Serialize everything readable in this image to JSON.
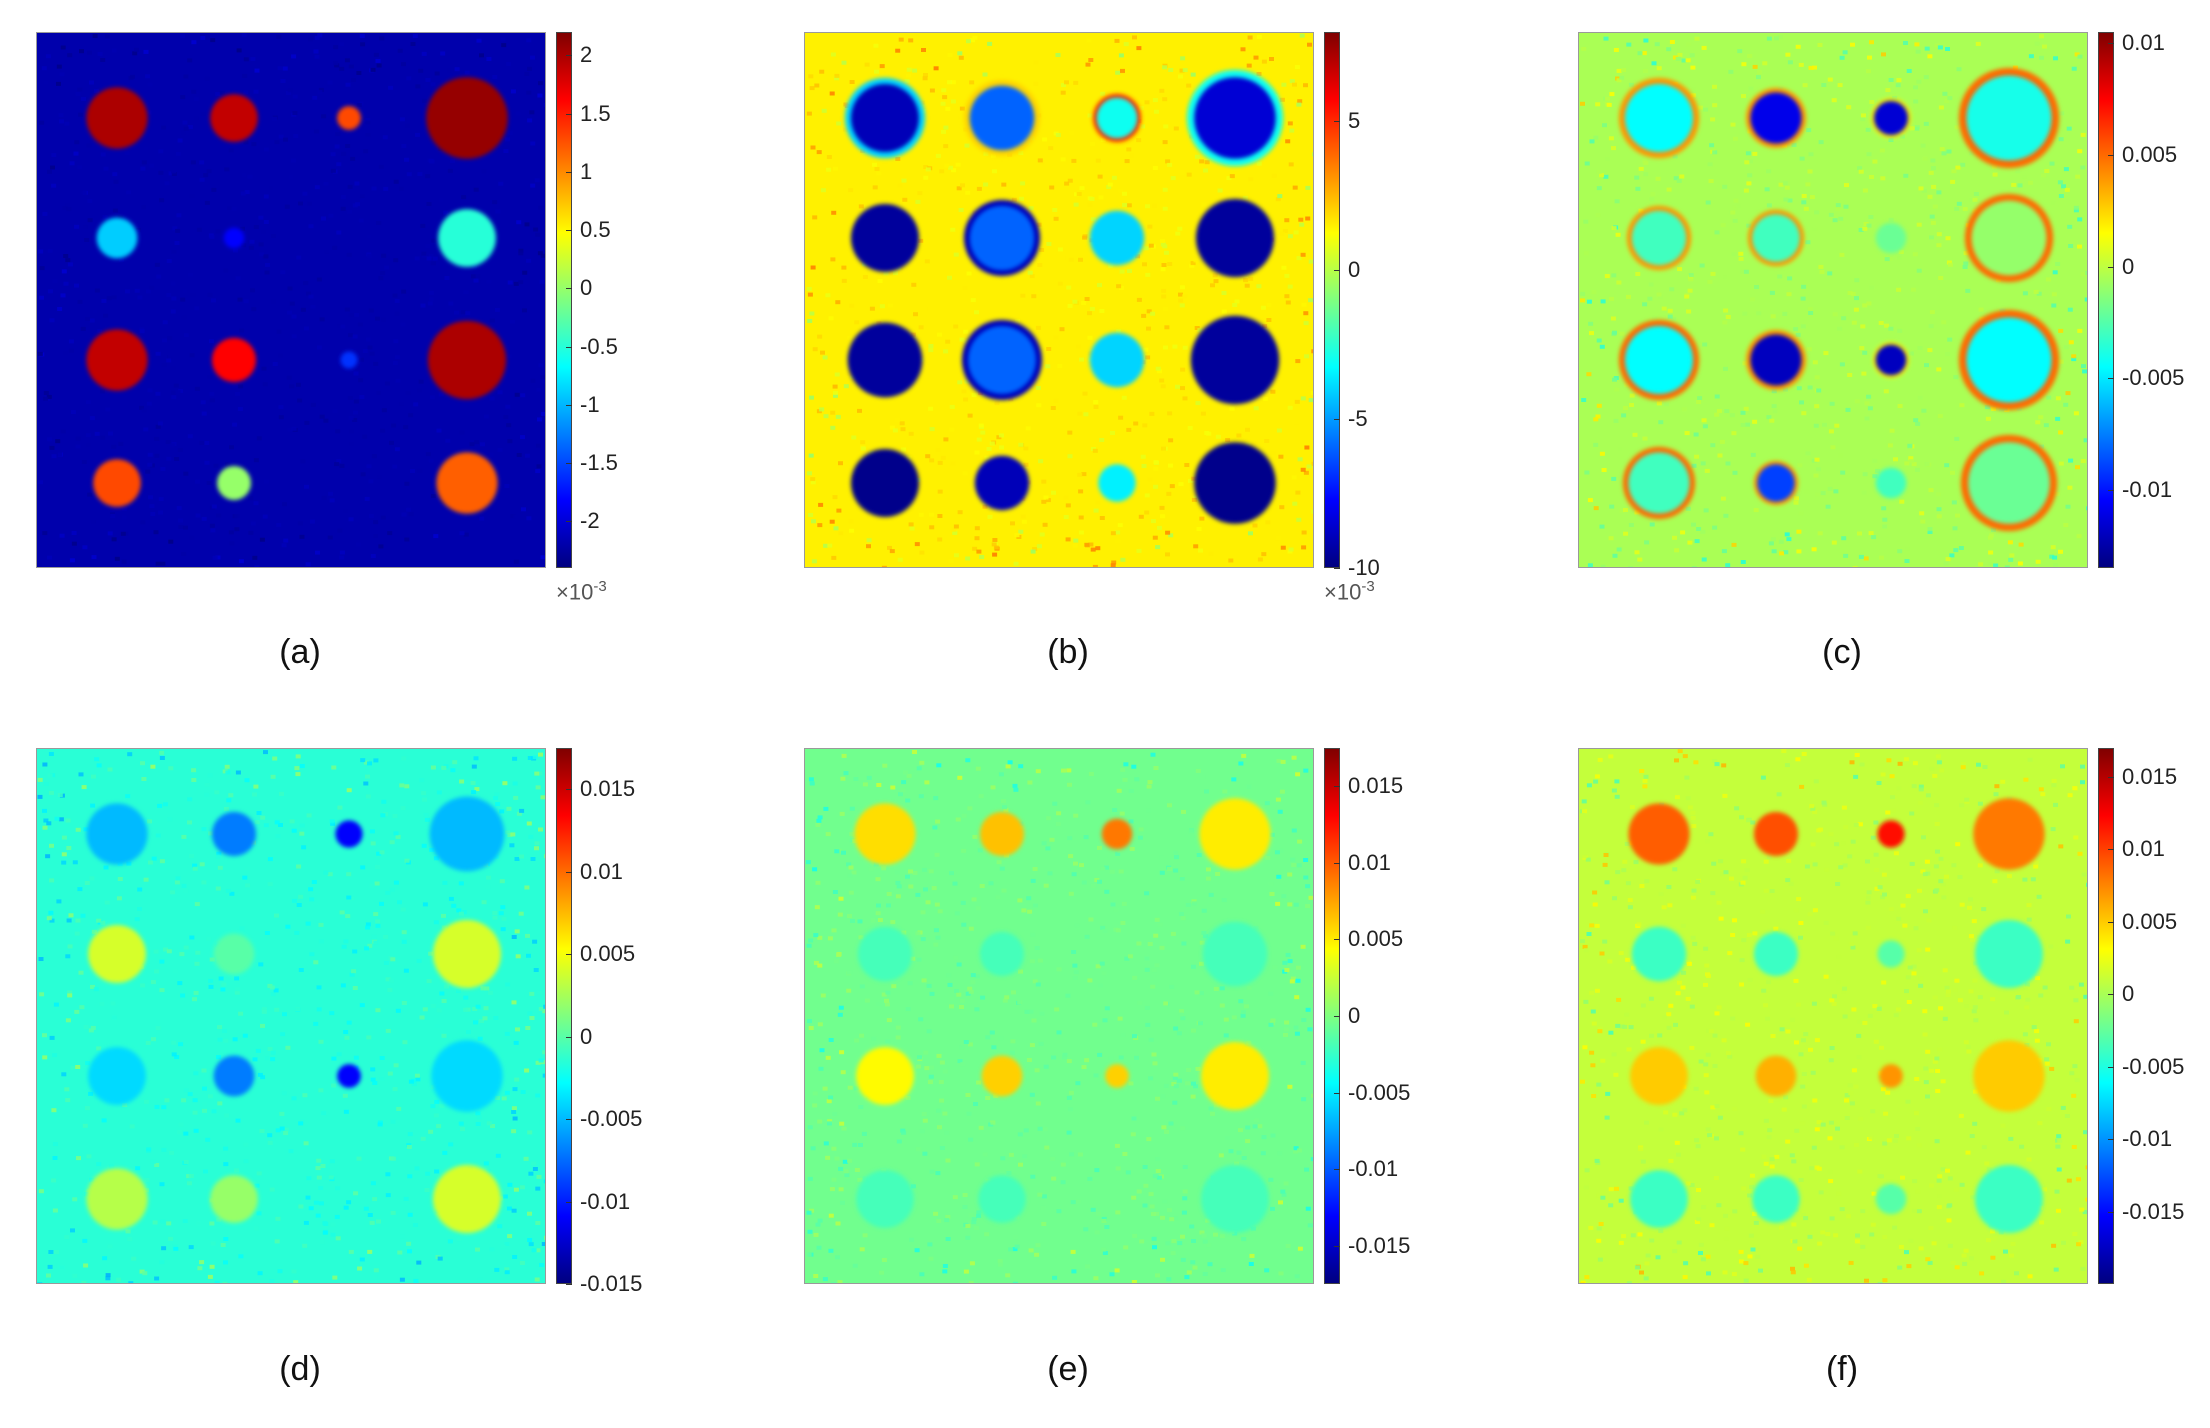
{
  "chart_data": [
    {
      "type": "heatmap",
      "panel_label": "(a)",
      "colorbar": {
        "colormap": "jet",
        "range": [
          -2.4,
          2.2
        ],
        "ticks": [
          2,
          1.5,
          1,
          0.5,
          0,
          -0.5,
          -1,
          -1.5,
          -2
        ],
        "tick_labels": [
          "2",
          "1.5",
          "1",
          "0.5",
          "0",
          "-0.5",
          "-1",
          "-1.5",
          "-2"
        ],
        "exponent_label": "×10",
        "exponent_power": "-3"
      },
      "background": {
        "value": -2.2,
        "noise": 0.08
      },
      "spots": [
        {
          "row": 1,
          "col": 1,
          "value": 2.0,
          "radius": 0.9
        },
        {
          "row": 1,
          "col": 2,
          "value": 1.9,
          "radius": 0.7
        },
        {
          "row": 1,
          "col": 3,
          "value": 1.3,
          "radius": 0.35
        },
        {
          "row": 1,
          "col": 4,
          "value": 2.1,
          "radius": 1.2
        },
        {
          "row": 2,
          "col": 1,
          "value": -0.9,
          "radius": 0.6
        },
        {
          "row": 2,
          "col": 2,
          "value": -1.8,
          "radius": 0.3
        },
        {
          "row": 2,
          "col": 4,
          "value": -0.5,
          "radius": 0.85
        },
        {
          "row": 3,
          "col": 1,
          "value": 1.9,
          "radius": 0.9
        },
        {
          "row": 3,
          "col": 2,
          "value": 1.6,
          "radius": 0.65
        },
        {
          "row": 3,
          "col": 3,
          "value": -1.6,
          "radius": 0.25
        },
        {
          "row": 3,
          "col": 4,
          "value": 2.0,
          "radius": 1.15
        },
        {
          "row": 4,
          "col": 1,
          "value": 1.3,
          "radius": 0.7
        },
        {
          "row": 4,
          "col": 2,
          "value": 0.0,
          "radius": 0.5
        },
        {
          "row": 4,
          "col": 4,
          "value": 1.2,
          "radius": 0.9
        }
      ]
    },
    {
      "type": "heatmap",
      "panel_label": "(b)",
      "colorbar": {
        "colormap": "jet",
        "range": [
          -10,
          8
        ],
        "ticks": [
          5,
          0,
          -5,
          -10
        ],
        "tick_labels": [
          "5",
          "0",
          "-5",
          "-10"
        ],
        "exponent_label": "×10",
        "exponent_power": "-3"
      },
      "background": {
        "value": 1.5,
        "noise": 1.0
      },
      "spots": [
        {
          "row": 1,
          "col": 1,
          "value": -9.0,
          "radius": 1.0,
          "ring": true,
          "ring_value": -4
        },
        {
          "row": 1,
          "col": 2,
          "value": -6.0,
          "radius": 0.95,
          "ring": true,
          "ring_value": 2
        },
        {
          "row": 1,
          "col": 3,
          "value": -3.0,
          "radius": 0.6,
          "ring": true,
          "ring_value": 5
        },
        {
          "row": 1,
          "col": 4,
          "value": -8.5,
          "radius": 1.2,
          "ring": true,
          "ring_value": -3
        },
        {
          "row": 2,
          "col": 1,
          "value": -9.5,
          "radius": 1.0
        },
        {
          "row": 2,
          "col": 2,
          "value": -6.0,
          "radius": 0.95,
          "ring": true,
          "ring_value": -9
        },
        {
          "row": 2,
          "col": 3,
          "value": -4.0,
          "radius": 0.8
        },
        {
          "row": 2,
          "col": 4,
          "value": -9.5,
          "radius": 1.15
        },
        {
          "row": 3,
          "col": 1,
          "value": -9.5,
          "radius": 1.1
        },
        {
          "row": 3,
          "col": 2,
          "value": -6.0,
          "radius": 1.0,
          "ring": true,
          "ring_value": -9
        },
        {
          "row": 3,
          "col": 3,
          "value": -4.0,
          "radius": 0.8
        },
        {
          "row": 3,
          "col": 4,
          "value": -9.5,
          "radius": 1.3
        },
        {
          "row": 4,
          "col": 1,
          "value": -9.8,
          "radius": 1.0
        },
        {
          "row": 4,
          "col": 2,
          "value": -9.0,
          "radius": 0.8
        },
        {
          "row": 4,
          "col": 3,
          "value": -3.5,
          "radius": 0.55
        },
        {
          "row": 4,
          "col": 4,
          "value": -9.8,
          "radius": 1.2
        }
      ]
    },
    {
      "type": "heatmap",
      "panel_label": "(c)",
      "colorbar": {
        "colormap": "jet",
        "range": [
          -0.0135,
          0.0105
        ],
        "ticks": [
          0.01,
          0.005,
          0,
          -0.005,
          -0.01
        ],
        "tick_labels": [
          "0.01",
          "0.005",
          "0",
          "-0.005",
          "-0.01"
        ]
      },
      "background": {
        "value": -0.0005,
        "noise": 0.0015
      },
      "spots": [
        {
          "row": 1,
          "col": 1,
          "value": -0.0045,
          "radius": 1.0,
          "ring": true,
          "ring_value": 0.004
        },
        {
          "row": 1,
          "col": 2,
          "value": -0.011,
          "radius": 0.75,
          "ring": true,
          "ring_value": 0.004
        },
        {
          "row": 1,
          "col": 3,
          "value": -0.0115,
          "radius": 0.5,
          "ring": true,
          "ring_value": 0.002
        },
        {
          "row": 1,
          "col": 4,
          "value": -0.004,
          "radius": 1.25,
          "ring": true,
          "ring_value": 0.005
        },
        {
          "row": 2,
          "col": 1,
          "value": -0.003,
          "radius": 0.8,
          "ring": true,
          "ring_value": 0.004
        },
        {
          "row": 2,
          "col": 2,
          "value": -0.003,
          "radius": 0.7,
          "ring": true,
          "ring_value": 0.004
        },
        {
          "row": 2,
          "col": 3,
          "value": -0.002,
          "radius": 0.45
        },
        {
          "row": 2,
          "col": 4,
          "value": -0.001,
          "radius": 1.1,
          "ring": true,
          "ring_value": 0.005
        },
        {
          "row": 3,
          "col": 1,
          "value": -0.0045,
          "radius": 1.0,
          "ring": true,
          "ring_value": 0.005
        },
        {
          "row": 3,
          "col": 2,
          "value": -0.012,
          "radius": 0.75,
          "ring": true,
          "ring_value": 0.004
        },
        {
          "row": 3,
          "col": 3,
          "value": -0.012,
          "radius": 0.45,
          "ring": true,
          "ring_value": 0.002
        },
        {
          "row": 3,
          "col": 4,
          "value": -0.0045,
          "radius": 1.25,
          "ring": true,
          "ring_value": 0.005
        },
        {
          "row": 4,
          "col": 1,
          "value": -0.003,
          "radius": 0.9,
          "ring": true,
          "ring_value": 0.005
        },
        {
          "row": 4,
          "col": 2,
          "value": -0.009,
          "radius": 0.55,
          "ring": true,
          "ring_value": 0.004
        },
        {
          "row": 4,
          "col": 3,
          "value": -0.003,
          "radius": 0.45
        },
        {
          "row": 4,
          "col": 4,
          "value": -0.002,
          "radius": 1.2,
          "ring": true,
          "ring_value": 0.005
        }
      ]
    },
    {
      "type": "heatmap",
      "panel_label": "(d)",
      "colorbar": {
        "colormap": "jet",
        "range": [
          -0.015,
          0.0175
        ],
        "ticks": [
          0.015,
          0.01,
          0.005,
          0,
          -0.005,
          -0.01,
          -0.015
        ],
        "tick_labels": [
          "0.015",
          "0.01",
          "0.005",
          "0",
          "-0.005",
          "-0.01",
          "-0.015"
        ]
      },
      "background": {
        "value": -0.0015,
        "noise": 0.0018
      },
      "spots": [
        {
          "row": 1,
          "col": 1,
          "value": -0.005,
          "radius": 0.9
        },
        {
          "row": 1,
          "col": 2,
          "value": -0.007,
          "radius": 0.65
        },
        {
          "row": 1,
          "col": 3,
          "value": -0.011,
          "radius": 0.4
        },
        {
          "row": 1,
          "col": 4,
          "value": -0.005,
          "radius": 1.1
        },
        {
          "row": 2,
          "col": 1,
          "value": 0.004,
          "radius": 0.85
        },
        {
          "row": 2,
          "col": 2,
          "value": 0.0,
          "radius": 0.6
        },
        {
          "row": 2,
          "col": 4,
          "value": 0.004,
          "radius": 1.0
        },
        {
          "row": 3,
          "col": 1,
          "value": -0.004,
          "radius": 0.85
        },
        {
          "row": 3,
          "col": 2,
          "value": -0.007,
          "radius": 0.6
        },
        {
          "row": 3,
          "col": 3,
          "value": -0.011,
          "radius": 0.35
        },
        {
          "row": 3,
          "col": 4,
          "value": -0.004,
          "radius": 1.05
        },
        {
          "row": 4,
          "col": 1,
          "value": 0.003,
          "radius": 0.9
        },
        {
          "row": 4,
          "col": 2,
          "value": 0.002,
          "radius": 0.7
        },
        {
          "row": 4,
          "col": 4,
          "value": 0.004,
          "radius": 1.0
        }
      ]
    },
    {
      "type": "heatmap",
      "panel_label": "(e)",
      "colorbar": {
        "colormap": "jet",
        "range": [
          -0.0175,
          0.0175
        ],
        "ticks": [
          0.015,
          0.01,
          0.005,
          0,
          -0.005,
          -0.01,
          -0.015
        ],
        "tick_labels": [
          "0.015",
          "0.01",
          "0.005",
          "0",
          "-0.005",
          "-0.01",
          "-0.015"
        ]
      },
      "background": {
        "value": -0.0005,
        "noise": 0.0016
      },
      "spots": [
        {
          "row": 1,
          "col": 1,
          "value": 0.0055,
          "radius": 0.9
        },
        {
          "row": 1,
          "col": 2,
          "value": 0.0065,
          "radius": 0.65
        },
        {
          "row": 1,
          "col": 3,
          "value": 0.009,
          "radius": 0.45
        },
        {
          "row": 1,
          "col": 4,
          "value": 0.005,
          "radius": 1.05
        },
        {
          "row": 2,
          "col": 1,
          "value": -0.002,
          "radius": 0.8
        },
        {
          "row": 2,
          "col": 2,
          "value": -0.002,
          "radius": 0.65
        },
        {
          "row": 2,
          "col": 4,
          "value": -0.002,
          "radius": 0.95
        },
        {
          "row": 3,
          "col": 1,
          "value": 0.0045,
          "radius": 0.85
        },
        {
          "row": 3,
          "col": 2,
          "value": 0.006,
          "radius": 0.6
        },
        {
          "row": 3,
          "col": 3,
          "value": 0.006,
          "radius": 0.35
        },
        {
          "row": 3,
          "col": 4,
          "value": 0.005,
          "radius": 1.0
        },
        {
          "row": 4,
          "col": 1,
          "value": -0.002,
          "radius": 0.85
        },
        {
          "row": 4,
          "col": 2,
          "value": -0.002,
          "radius": 0.7
        },
        {
          "row": 4,
          "col": 4,
          "value": -0.002,
          "radius": 1.0
        }
      ]
    },
    {
      "type": "heatmap",
      "panel_label": "(f)",
      "colorbar": {
        "colormap": "jet",
        "range": [
          -0.02,
          0.017
        ],
        "ticks": [
          0.015,
          0.01,
          0.005,
          0,
          -0.005,
          -0.01,
          -0.015
        ],
        "tick_labels": [
          "0.015",
          "0.01",
          "0.005",
          "0",
          "-0.005",
          "-0.01",
          "-0.015"
        ]
      },
      "background": {
        "value": 0.001,
        "noise": 0.0022
      },
      "spots": [
        {
          "row": 1,
          "col": 1,
          "value": 0.009,
          "radius": 0.9
        },
        {
          "row": 1,
          "col": 2,
          "value": 0.0095,
          "radius": 0.65
        },
        {
          "row": 1,
          "col": 3,
          "value": 0.012,
          "radius": 0.4
        },
        {
          "row": 1,
          "col": 4,
          "value": 0.008,
          "radius": 1.05
        },
        {
          "row": 2,
          "col": 1,
          "value": -0.004,
          "radius": 0.8
        },
        {
          "row": 2,
          "col": 2,
          "value": -0.004,
          "radius": 0.65
        },
        {
          "row": 2,
          "col": 3,
          "value": -0.003,
          "radius": 0.4
        },
        {
          "row": 2,
          "col": 4,
          "value": -0.004,
          "radius": 1.0
        },
        {
          "row": 3,
          "col": 1,
          "value": 0.005,
          "radius": 0.85
        },
        {
          "row": 3,
          "col": 2,
          "value": 0.006,
          "radius": 0.6
        },
        {
          "row": 3,
          "col": 3,
          "value": 0.007,
          "radius": 0.35
        },
        {
          "row": 3,
          "col": 4,
          "value": 0.005,
          "radius": 1.05
        },
        {
          "row": 4,
          "col": 1,
          "value": -0.004,
          "radius": 0.85
        },
        {
          "row": 4,
          "col": 2,
          "value": -0.004,
          "radius": 0.7
        },
        {
          "row": 4,
          "col": 3,
          "value": -0.003,
          "radius": 0.45
        },
        {
          "row": 4,
          "col": 4,
          "value": -0.004,
          "radius": 1.0
        }
      ]
    }
  ]
}
